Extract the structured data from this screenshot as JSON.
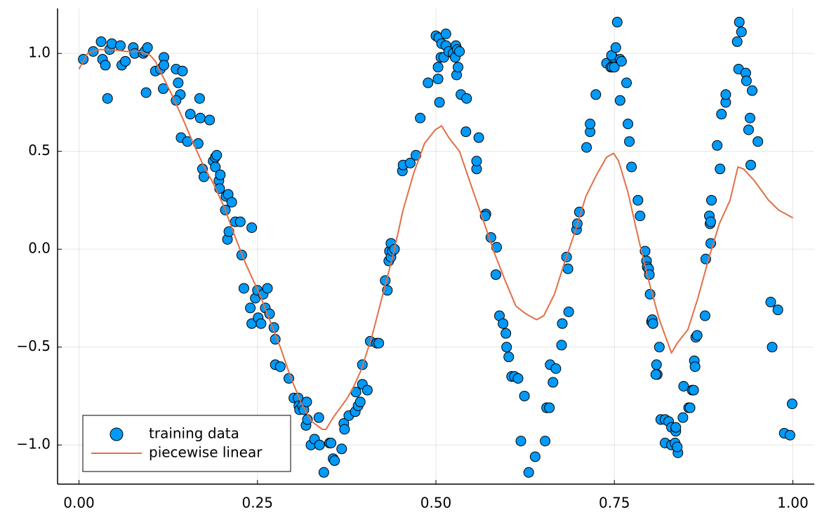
{
  "chart_data": {
    "type": "scatter",
    "xlim": [
      -0.03,
      1.03
    ],
    "ylim": [
      -1.2,
      1.23
    ],
    "xticks": [
      {
        "value": 0,
        "label": "0.00"
      },
      {
        "value": 0.25,
        "label": "0.25"
      },
      {
        "value": 0.5,
        "label": "0.50"
      },
      {
        "value": 0.75,
        "label": "0.75"
      },
      {
        "value": 1,
        "label": "1.00"
      }
    ],
    "yticks": [
      {
        "value": -1,
        "label": "−1.0"
      },
      {
        "value": -0.5,
        "label": "−0.5"
      },
      {
        "value": 0,
        "label": "0.0"
      },
      {
        "value": 0.5,
        "label": "0.5"
      },
      {
        "value": 1,
        "label": "1.0"
      }
    ],
    "grid": true,
    "legend_position": "bottom-left",
    "series": [
      {
        "name": "training data",
        "type": "scatter",
        "color": "#009af9",
        "x": [
          0.006,
          0.02,
          0.031,
          0.033,
          0.037,
          0.04,
          0.043,
          0.046,
          0.058,
          0.06,
          0.065,
          0.076,
          0.078,
          0.09,
          0.092,
          0.096,
          0.094,
          0.107,
          0.114,
          0.119,
          0.119,
          0.118,
          0.136,
          0.139,
          0.142,
          0.145,
          0.136,
          0.143,
          0.152,
          0.156,
          0.167,
          0.169,
          0.17,
          0.173,
          0.175,
          0.183,
          0.188,
          0.191,
          0.191,
          0.193,
          0.196,
          0.198,
          0.197,
          0.205,
          0.206,
          0.208,
          0.209,
          0.21,
          0.214,
          0.219,
          0.226,
          0.228,
          0.231,
          0.24,
          0.242,
          0.242,
          0.247,
          0.25,
          0.251,
          0.255,
          0.258,
          0.261,
          0.264,
          0.267,
          0.273,
          0.275,
          0.275,
          0.282,
          0.294,
          0.301,
          0.307,
          0.308,
          0.309,
          0.313,
          0.315,
          0.319,
          0.318,
          0.32,
          0.325,
          0.33,
          0.336,
          0.337,
          0.343,
          0.351,
          0.353,
          0.356,
          0.358,
          0.368,
          0.371,
          0.372,
          0.378,
          0.388,
          0.387,
          0.391,
          0.394,
          0.397,
          0.397,
          0.404,
          0.408,
          0.417,
          0.42,
          0.429,
          0.432,
          0.434,
          0.435,
          0.437,
          0.437,
          0.439,
          0.442,
          0.453,
          0.454,
          0.464,
          0.472,
          0.478,
          0.489,
          0.5,
          0.504,
          0.503,
          0.503,
          0.507,
          0.511,
          0.505,
          0.508,
          0.514,
          0.514,
          0.518,
          0.524,
          0.527,
          0.528,
          0.53,
          0.529,
          0.531,
          0.533,
          0.535,
          0.543,
          0.542,
          0.557,
          0.557,
          0.56,
          0.57,
          0.569,
          0.577,
          0.585,
          0.584,
          0.589,
          0.594,
          0.598,
          0.599,
          0.602,
          0.606,
          0.61,
          0.615,
          0.619,
          0.624,
          0.63,
          0.639,
          0.653,
          0.655,
          0.659,
          0.66,
          0.664,
          0.668,
          0.676,
          0.677,
          0.683,
          0.685,
          0.686,
          0.697,
          0.698,
          0.701,
          0.711,
          0.716,
          0.716,
          0.724,
          0.739,
          0.745,
          0.748,
          0.746,
          0.747,
          0.75,
          0.752,
          0.754,
          0.758,
          0.758,
          0.76,
          0.767,
          0.769,
          0.771,
          0.774,
          0.783,
          0.786,
          0.793,
          0.795,
          0.796,
          0.798,
          0.799,
          0.8,
          0.802,
          0.803,
          0.804,
          0.809,
          0.81,
          0.808,
          0.813,
          0.815,
          0.821,
          0.821,
          0.826,
          0.83,
          0.83,
          0.836,
          0.836,
          0.835,
          0.839,
          0.838,
          0.846,
          0.847,
          0.854,
          0.856,
          0.859,
          0.861,
          0.864,
          0.862,
          0.863,
          0.866,
          0.877,
          0.878,
          0.883,
          0.884,
          0.885,
          0.886,
          0.885,
          0.894,
          0.898,
          0.9,
          0.906,
          0.906,
          0.922,
          0.925,
          0.928,
          0.924,
          0.934,
          0.935,
          0.94,
          0.938,
          0.941,
          0.943,
          0.951,
          0.969,
          0.971,
          0.979,
          0.988,
          0.996,
          0.999
        ],
        "values": [
          0.97,
          1.01,
          1.06,
          0.97,
          0.94,
          0.77,
          1.02,
          1.05,
          1.04,
          0.94,
          0.96,
          1.03,
          1.0,
          1.0,
          1.01,
          1.03,
          0.8,
          0.91,
          0.92,
          0.98,
          0.94,
          0.82,
          0.92,
          0.85,
          0.79,
          0.91,
          0.76,
          0.57,
          0.55,
          0.69,
          0.54,
          0.77,
          0.67,
          0.41,
          0.37,
          0.66,
          0.45,
          0.42,
          0.47,
          0.48,
          0.35,
          0.38,
          0.31,
          0.2,
          0.27,
          0.05,
          0.28,
          0.09,
          0.24,
          0.14,
          0.14,
          -0.03,
          -0.2,
          -0.3,
          -0.38,
          0.11,
          -0.25,
          -0.21,
          -0.35,
          -0.38,
          -0.23,
          -0.3,
          -0.2,
          -0.33,
          -0.4,
          -0.46,
          -0.59,
          -0.6,
          -0.66,
          -0.76,
          -0.76,
          -0.8,
          -0.82,
          -0.8,
          -0.82,
          -0.78,
          -0.9,
          -0.87,
          -1.0,
          -0.97,
          -0.86,
          -1.0,
          -1.14,
          -0.99,
          -0.99,
          -1.07,
          -1.08,
          -1.02,
          -0.89,
          -0.92,
          -0.85,
          -0.73,
          -0.83,
          -0.8,
          -0.78,
          -0.69,
          -0.59,
          -0.72,
          -0.47,
          -0.48,
          -0.48,
          -0.16,
          -0.21,
          -0.06,
          -0.01,
          0.03,
          -0.04,
          -0.01,
          0.0,
          0.4,
          0.43,
          0.44,
          0.48,
          0.67,
          0.85,
          1.09,
          1.08,
          0.93,
          0.87,
          0.98,
          0.98,
          0.75,
          1.05,
          1.1,
          1.04,
          1.01,
          1.0,
          0.98,
          1.04,
          1.02,
          0.89,
          0.93,
          1.01,
          0.79,
          0.77,
          0.6,
          0.41,
          0.45,
          0.57,
          0.18,
          0.17,
          0.06,
          0.01,
          -0.13,
          -0.34,
          -0.38,
          -0.43,
          -0.5,
          -0.55,
          -0.65,
          -0.65,
          -0.66,
          -0.98,
          -0.75,
          -1.14,
          -1.06,
          -0.98,
          -0.81,
          -0.81,
          -0.59,
          -0.68,
          -0.61,
          -0.49,
          -0.38,
          -0.04,
          -0.1,
          -0.32,
          0.1,
          0.13,
          0.19,
          0.52,
          0.6,
          0.64,
          0.79,
          0.95,
          0.93,
          0.98,
          0.99,
          0.93,
          0.93,
          1.03,
          1.16,
          0.97,
          0.76,
          0.96,
          0.85,
          0.64,
          0.55,
          0.42,
          0.25,
          0.17,
          -0.01,
          -0.06,
          -0.09,
          -0.1,
          -0.13,
          -0.23,
          -0.37,
          -0.36,
          -0.38,
          -0.59,
          -0.64,
          -0.64,
          -0.5,
          -0.87,
          -0.87,
          -0.99,
          -0.88,
          -1.0,
          -0.91,
          -0.93,
          -0.91,
          -0.99,
          -1.04,
          -1.01,
          -0.86,
          -0.7,
          -0.81,
          -0.81,
          -0.72,
          -0.72,
          -0.45,
          -0.57,
          -0.6,
          -0.44,
          -0.34,
          -0.05,
          0.17,
          0.13,
          0.14,
          0.25,
          0.03,
          0.53,
          0.41,
          0.69,
          0.75,
          0.79,
          1.06,
          1.16,
          1.11,
          0.92,
          0.9,
          0.86,
          0.67,
          0.61,
          0.43,
          0.81,
          0.55,
          -0.27,
          -0.5,
          -0.31,
          -0.94,
          -0.95,
          -0.79
        ]
      },
      {
        "name": "piecewise linear",
        "type": "line",
        "color": "#e26f46",
        "x": [
          0.0,
          0.012,
          0.027,
          0.046,
          0.066,
          0.086,
          0.1,
          0.107,
          0.115,
          0.13,
          0.145,
          0.159,
          0.174,
          0.189,
          0.204,
          0.218,
          0.233,
          0.253,
          0.267,
          0.282,
          0.297,
          0.312,
          0.326,
          0.341,
          0.346,
          0.356,
          0.366,
          0.376,
          0.385,
          0.395,
          0.41,
          0.425,
          0.44,
          0.454,
          0.469,
          0.484,
          0.499,
          0.508,
          0.518,
          0.533,
          0.548,
          0.567,
          0.582,
          0.597,
          0.612,
          0.626,
          0.641,
          0.651,
          0.666,
          0.68,
          0.695,
          0.71,
          0.725,
          0.739,
          0.749,
          0.756,
          0.769,
          0.784,
          0.798,
          0.813,
          0.83,
          0.838,
          0.853,
          0.867,
          0.882,
          0.897,
          0.912,
          0.923,
          0.931,
          0.946,
          0.966,
          0.98,
          1.0
        ],
        "values": [
          0.92,
          1.0,
          1.02,
          1.02,
          1.01,
          1.01,
          0.99,
          0.96,
          0.9,
          0.79,
          0.67,
          0.55,
          0.43,
          0.33,
          0.21,
          0.07,
          -0.07,
          -0.23,
          -0.36,
          -0.5,
          -0.66,
          -0.79,
          -0.88,
          -0.92,
          -0.92,
          -0.86,
          -0.81,
          -0.76,
          -0.7,
          -0.62,
          -0.45,
          -0.24,
          -0.03,
          0.2,
          0.39,
          0.54,
          0.61,
          0.63,
          0.57,
          0.5,
          0.34,
          0.14,
          -0.02,
          -0.16,
          -0.29,
          -0.33,
          -0.36,
          -0.34,
          -0.23,
          -0.07,
          0.09,
          0.27,
          0.38,
          0.47,
          0.49,
          0.45,
          0.29,
          0.05,
          -0.16,
          -0.36,
          -0.53,
          -0.48,
          -0.41,
          -0.25,
          -0.05,
          0.13,
          0.25,
          0.42,
          0.41,
          0.35,
          0.25,
          0.2,
          0.16
        ]
      }
    ]
  }
}
